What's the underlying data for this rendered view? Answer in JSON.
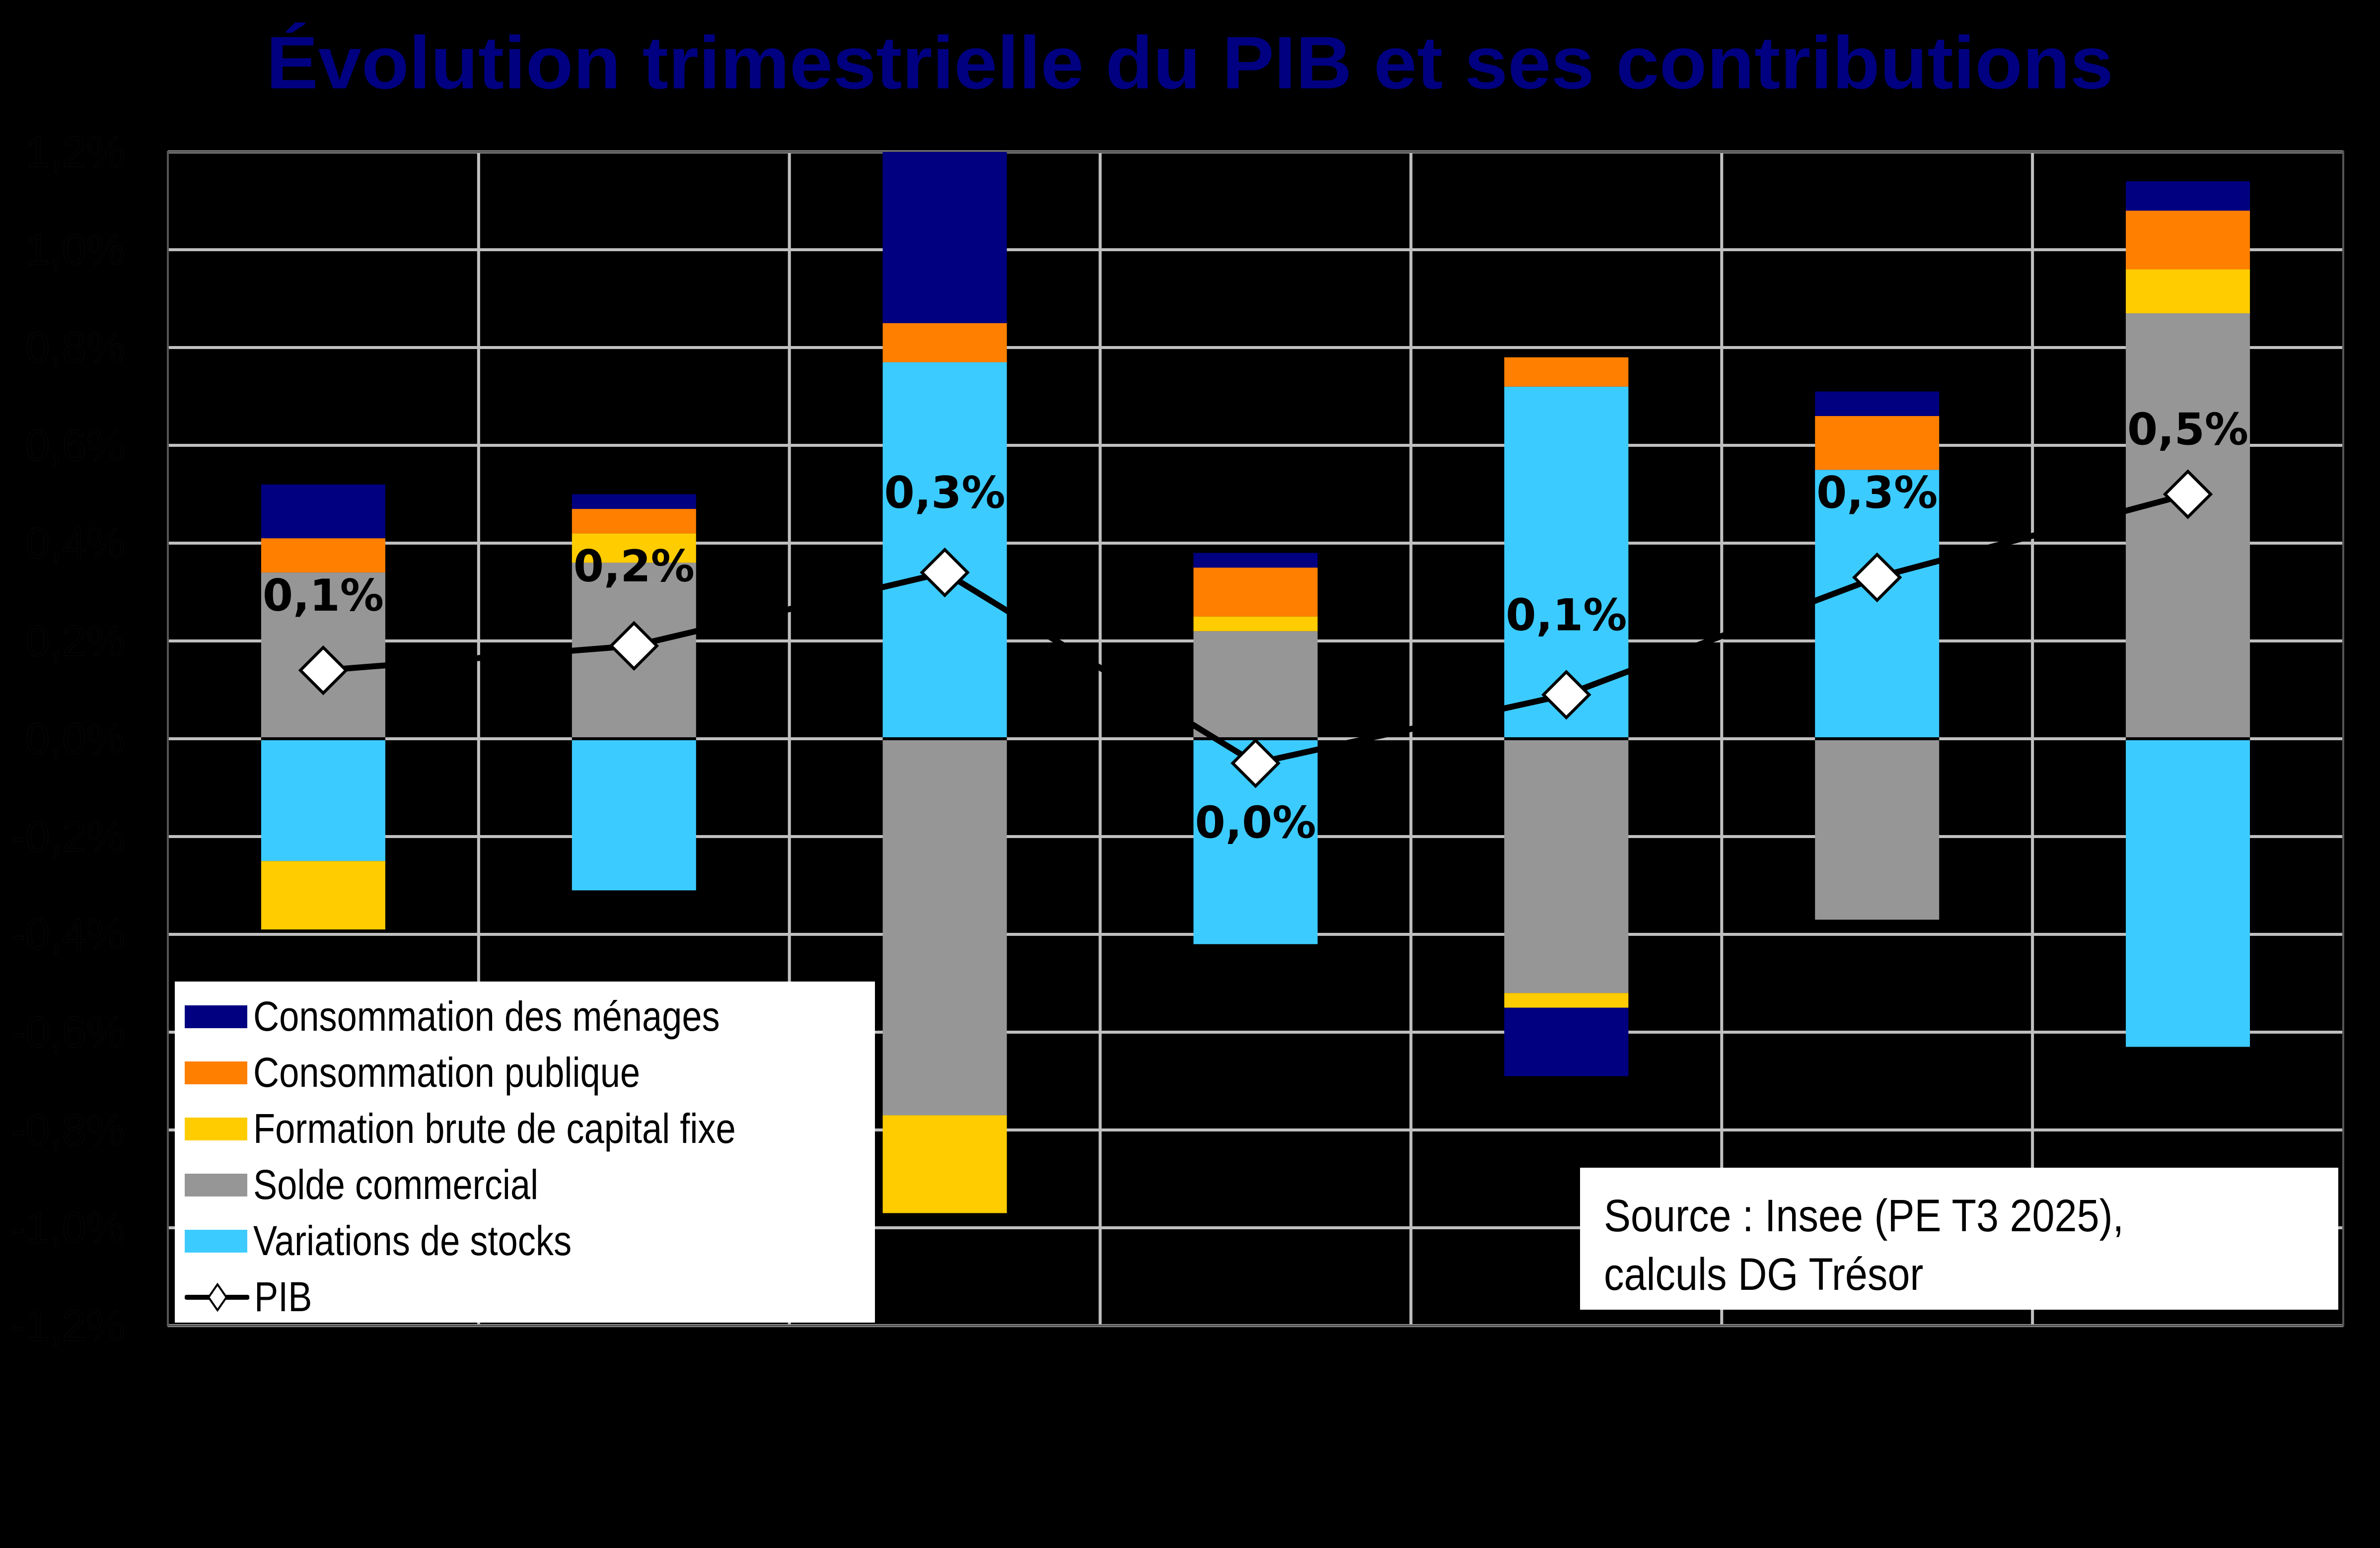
{
  "title": "Évolution trimestrielle du PIB et ses contributions",
  "colors": {
    "background": "#000000",
    "title": "#000080",
    "gridline": "#c0c0c0",
    "consommation_menages": "#000080",
    "consommation_publique": "#FF7F00",
    "fbcf": "#FFCC00",
    "solde_commercial": "#969696",
    "variations_stocks": "#3CCBFF",
    "pib_line": "#000000",
    "pib_marker_fill": "#ffffff"
  },
  "legend": {
    "items": [
      {
        "key": "consommation_menages",
        "label": "Consommation des ménages",
        "type": "swatch"
      },
      {
        "key": "consommation_publique",
        "label": "Consommation publique",
        "type": "swatch"
      },
      {
        "key": "fbcf",
        "label": "Formation brute de capital fixe",
        "type": "swatch"
      },
      {
        "key": "solde_commercial",
        "label": "Solde commercial",
        "type": "swatch"
      },
      {
        "key": "variations_stocks",
        "label": "Variations de stocks",
        "type": "swatch"
      },
      {
        "key": "pib",
        "label": "PIB",
        "type": "line-diamond"
      }
    ]
  },
  "source": {
    "line1": "Source : Insee (PE T3 2025),",
    "line2": "calculs DG Trésor"
  },
  "chart_data": {
    "type": "bar",
    "subtype": "stacked bar with line overlay",
    "title": "Évolution trimestrielle du PIB et ses contributions",
    "xlabel": "",
    "ylabel": "",
    "categories": [
      "",
      "",
      "",
      "",
      "",
      "",
      ""
    ],
    "y_ticks": [
      "1,2%",
      "1,0%",
      "0,8%",
      "0,6%",
      "0,4%",
      "0,2%",
      "0,0%",
      "-0,2%",
      "-0,4%",
      "-0,6%",
      "-0,8%",
      "-1,0%",
      "-1,2%"
    ],
    "ylim": [
      -1.2,
      1.2
    ],
    "grid": true,
    "legend_position": "bottom-left inside plot",
    "series": [
      {
        "name": "Consommation des ménages",
        "key": "consommation_menages",
        "values": [
          0.11,
          0.03,
          0.46,
          0.03,
          -0.14,
          0.05,
          0.06
        ]
      },
      {
        "name": "Consommation publique",
        "key": "consommation_publique",
        "values": [
          0.07,
          0.05,
          0.08,
          0.1,
          0.06,
          0.11,
          0.12
        ]
      },
      {
        "name": "Formation brute de capital fixe",
        "key": "fbcf",
        "values": [
          -0.14,
          0.06,
          -0.2,
          0.03,
          -0.03,
          0.0,
          0.09
        ]
      },
      {
        "name": "Solde commercial",
        "key": "solde_commercial",
        "values": [
          0.34,
          0.36,
          -0.77,
          0.22,
          -0.52,
          -0.37,
          0.87
        ]
      },
      {
        "name": "Variations de stocks",
        "key": "variations_stocks",
        "values": [
          -0.25,
          -0.31,
          0.77,
          -0.42,
          0.72,
          0.55,
          -0.63
        ]
      },
      {
        "name": "PIB",
        "key": "pib",
        "type": "line",
        "values": [
          0.14,
          0.19,
          0.34,
          -0.05,
          0.09,
          0.33,
          0.5
        ]
      }
    ],
    "data_labels": [
      "0,1%",
      "0,2%",
      "0,3%",
      "0,0%",
      "0,1%",
      "0,3%",
      "0,5%"
    ],
    "annotations": [
      "Source : Insee (PE T3 2025), calculs DG Trésor"
    ]
  }
}
